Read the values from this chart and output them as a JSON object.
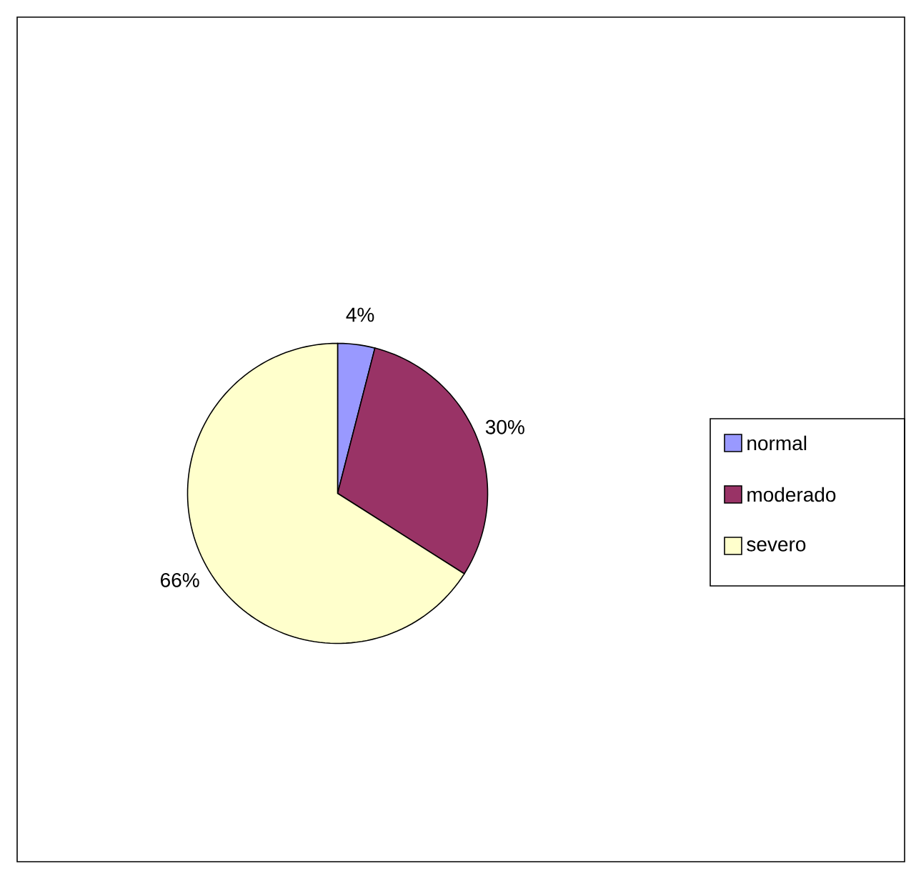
{
  "chart_data": {
    "type": "pie",
    "categories": [
      "normal",
      "moderado",
      "severo"
    ],
    "values": [
      4,
      30,
      66
    ],
    "colors": [
      "#9999ff",
      "#993366",
      "#ffffcc"
    ],
    "value_labels": [
      "4%",
      "30%",
      "66%"
    ],
    "legend": "right"
  }
}
